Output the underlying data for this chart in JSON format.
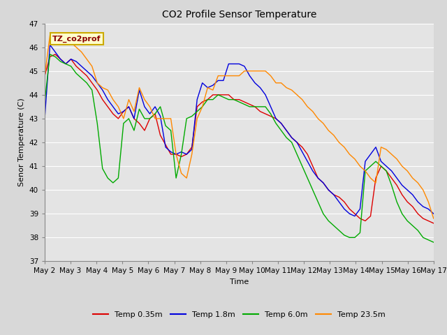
{
  "title": "CO2 Profile Sensor Temperature",
  "xlabel": "Time",
  "ylabel": "Senor Temperature (C)",
  "ylim": [
    37.0,
    47.0
  ],
  "yticks": [
    37.0,
    38.0,
    39.0,
    40.0,
    41.0,
    42.0,
    43.0,
    44.0,
    45.0,
    46.0,
    47.0
  ],
  "bg_color": "#d8d8d8",
  "plot_bg_color": "#e4e4e4",
  "grid_color": "#ffffff",
  "annotation_text": "TZ_co2prof",
  "annotation_bg": "#ffffcc",
  "annotation_border": "#ccaa00",
  "legend_labels": [
    "Temp 0.35m",
    "Temp 1.8m",
    "Temp 6.0m",
    "Temp 23.5m"
  ],
  "colors": [
    "#dd0000",
    "#0000dd",
    "#00aa00",
    "#ff8800"
  ],
  "xtick_labels": [
    "May 2",
    "May 3",
    "May 4",
    "May 5",
    "May 6",
    "May 7",
    "May 8",
    "May 9",
    "May 10",
    "May 11",
    "May 12",
    "May 13",
    "May 14",
    "May 15",
    "May 16",
    "May 17"
  ],
  "temp_035": [
    44.8,
    45.6,
    45.7,
    45.5,
    45.3,
    45.5,
    45.2,
    45.0,
    44.8,
    44.5,
    44.2,
    43.8,
    43.5,
    43.2,
    43.0,
    43.3,
    43.5,
    43.0,
    42.8,
    42.5,
    43.0,
    43.2,
    42.3,
    41.9,
    41.5,
    41.5,
    41.4,
    41.5,
    41.8,
    43.5,
    43.7,
    43.8,
    44.0,
    44.0,
    44.0,
    44.0,
    43.8,
    43.8,
    43.7,
    43.6,
    43.5,
    43.3,
    43.2,
    43.1,
    43.0,
    42.8,
    42.5,
    42.2,
    42.0,
    41.8,
    41.5,
    41.0,
    40.5,
    40.3,
    40.0,
    39.8,
    39.7,
    39.5,
    39.2,
    39.0,
    38.8,
    38.7,
    38.9,
    40.5,
    41.0,
    40.8,
    40.5,
    40.2,
    39.8,
    39.5,
    39.3,
    39.0,
    38.8,
    38.7,
    38.6
  ],
  "temp_18": [
    43.0,
    46.1,
    45.8,
    45.5,
    45.3,
    45.5,
    45.4,
    45.2,
    45.0,
    44.8,
    44.5,
    44.2,
    43.8,
    43.5,
    43.2,
    43.3,
    43.5,
    43.0,
    44.2,
    43.5,
    43.2,
    43.5,
    43.1,
    41.8,
    41.6,
    41.5,
    41.6,
    41.5,
    41.7,
    43.8,
    44.5,
    44.3,
    44.4,
    44.6,
    44.6,
    45.3,
    45.3,
    45.3,
    45.2,
    44.8,
    44.5,
    44.3,
    44.0,
    43.5,
    43.0,
    42.8,
    42.5,
    42.2,
    42.0,
    41.6,
    41.2,
    40.8,
    40.5,
    40.3,
    40.0,
    39.8,
    39.5,
    39.2,
    39.0,
    38.9,
    39.2,
    41.2,
    41.5,
    41.8,
    41.2,
    41.0,
    40.8,
    40.5,
    40.2,
    40.0,
    39.8,
    39.5,
    39.3,
    39.2,
    39.0
  ],
  "temp_60": [
    43.7,
    45.7,
    45.6,
    45.4,
    45.3,
    45.2,
    44.9,
    44.7,
    44.5,
    44.2,
    42.8,
    40.9,
    40.5,
    40.3,
    40.5,
    42.8,
    43.0,
    42.5,
    43.4,
    43.0,
    43.0,
    43.2,
    43.5,
    42.7,
    42.5,
    40.5,
    41.5,
    43.0,
    43.1,
    43.3,
    43.5,
    43.8,
    43.8,
    44.0,
    43.9,
    43.8,
    43.8,
    43.7,
    43.6,
    43.5,
    43.5,
    43.5,
    43.5,
    43.2,
    42.8,
    42.5,
    42.2,
    42.0,
    41.5,
    41.0,
    40.5,
    40.0,
    39.5,
    39.0,
    38.7,
    38.5,
    38.3,
    38.1,
    38.0,
    38.0,
    38.2,
    40.8,
    41.0,
    41.2,
    41.0,
    40.8,
    40.2,
    39.5,
    39.0,
    38.7,
    38.5,
    38.3,
    38.0,
    37.9,
    37.8
  ],
  "temp_235": [
    44.8,
    46.5,
    46.3,
    46.2,
    46.3,
    46.2,
    46.0,
    45.8,
    45.5,
    45.2,
    44.5,
    44.3,
    44.2,
    43.8,
    43.5,
    43.0,
    43.8,
    43.3,
    44.3,
    43.8,
    43.5,
    43.0,
    43.0,
    43.0,
    43.0,
    41.5,
    40.7,
    40.5,
    41.5,
    43.0,
    43.5,
    44.3,
    44.2,
    44.8,
    44.8,
    44.8,
    44.8,
    44.8,
    45.0,
    45.0,
    45.0,
    45.0,
    45.0,
    44.8,
    44.5,
    44.5,
    44.3,
    44.2,
    44.0,
    43.8,
    43.5,
    43.3,
    43.0,
    42.8,
    42.5,
    42.3,
    42.0,
    41.8,
    41.5,
    41.3,
    41.0,
    40.8,
    40.5,
    40.3,
    41.8,
    41.7,
    41.5,
    41.3,
    41.0,
    40.8,
    40.5,
    40.3,
    40.0,
    39.5,
    38.8
  ]
}
